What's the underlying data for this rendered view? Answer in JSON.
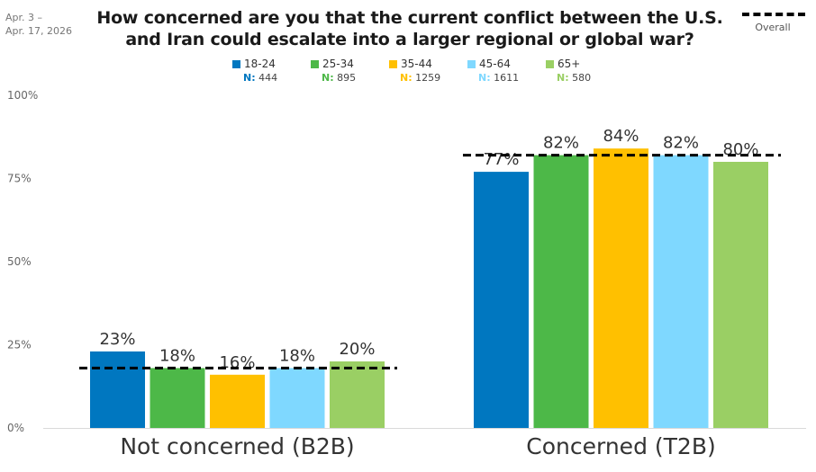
{
  "date_range": [
    "Apr. 3 –",
    "Apr. 17, 2026"
  ],
  "chart_data": {
    "type": "bar",
    "title": "How concerned are you that the current conflict between the U.S. and Iran could escalate into a larger regional or global war?",
    "categories": [
      "Not concerned (B2B)",
      "Concerned (T2B)"
    ],
    "series": [
      {
        "name": "18-24",
        "n_label": "N:",
        "n": "444",
        "color": "#0077C0",
        "values": [
          23,
          77
        ],
        "labels": [
          "23%",
          "77%"
        ]
      },
      {
        "name": "25-34",
        "n_label": "N:",
        "n": "895",
        "color": "#4DB848",
        "values": [
          18,
          82
        ],
        "labels": [
          "18%",
          "82%"
        ]
      },
      {
        "name": "35-44",
        "n_label": "N:",
        "n": "1259",
        "color": "#FFC000",
        "values": [
          16,
          84
        ],
        "labels": [
          "16%",
          "84%"
        ]
      },
      {
        "name": "45-64",
        "n_label": "N:",
        "n": "1611",
        "color": "#7FD8FF",
        "values": [
          18,
          82
        ],
        "labels": [
          "18%",
          "82%"
        ]
      },
      {
        "name": "65+",
        "n_label": "N:",
        "n": "580",
        "color": "#9ACF64",
        "values": [
          20,
          80
        ],
        "labels": [
          "20%",
          "80%"
        ]
      }
    ],
    "overall": {
      "name": "Overall",
      "values": [
        18,
        82
      ]
    },
    "ylim": [
      0,
      100
    ],
    "yticks": [
      "0%",
      "25%",
      "50%",
      "75%",
      "100%"
    ],
    "grid": false,
    "legend_position": "top"
  }
}
